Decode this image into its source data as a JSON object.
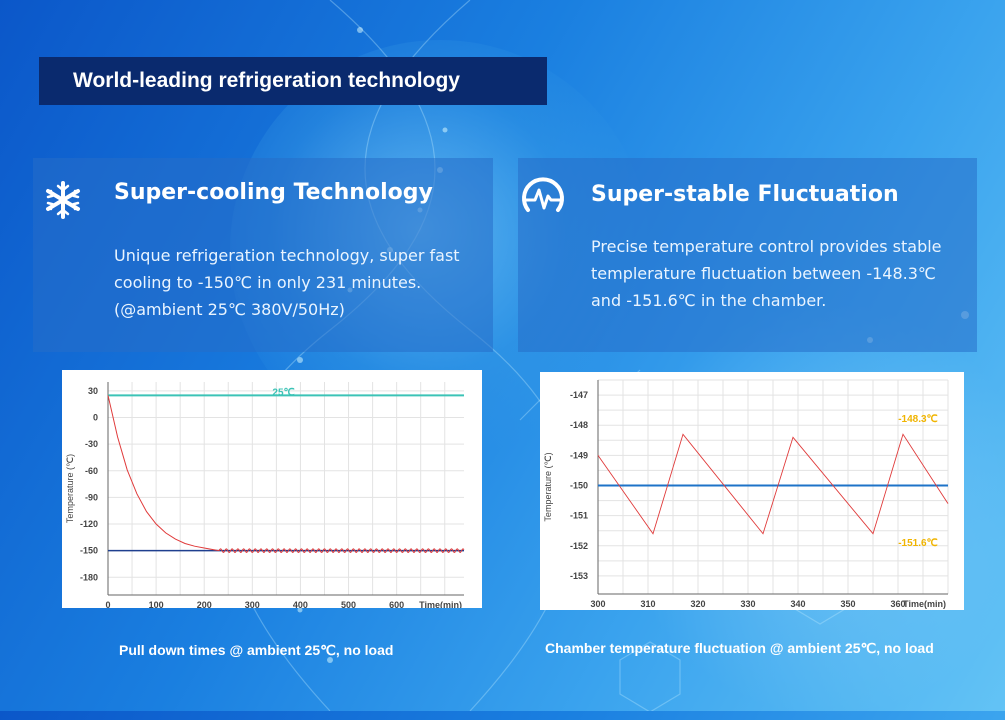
{
  "banner": {
    "title": "World-leading refrigeration technology"
  },
  "panels": [
    {
      "icon": "snowflake-icon",
      "title": "Super-cooling Technology",
      "lines": [
        "Unique refrigeration technology, super fast",
        "cooling to -150℃ in only 231 minutes.",
        "(@ambient 25℃ 380V/50Hz)"
      ]
    },
    {
      "icon": "pulse-gauge-icon",
      "title": "Super-stable Fluctuation",
      "lines": [
        "Precise temperature control provides stable",
        "templerature fluctuation between -148.3℃",
        "and -151.6℃ in the chamber."
      ]
    }
  ],
  "captions": {
    "left": "Pull down times @ ambient 25℃, no load",
    "right": "Chamber temperature fluctuation @ ambient  25℃, no load"
  },
  "colors": {
    "ambient_line": "#3cc3b6",
    "curve": "#e03a3a",
    "target_line": "#1f3f8f",
    "setpoint_line": "#1e73c8",
    "annotation": "#f0b400"
  },
  "chart_data": [
    {
      "type": "line",
      "ylabel": "Temperature (℃)",
      "xlabel": "Time(min)",
      "xlim": [
        0,
        740
      ],
      "ylim": [
        -200,
        40
      ],
      "xticks": [
        0,
        100,
        200,
        300,
        400,
        500,
        600
      ],
      "yticks": [
        30,
        0,
        -30,
        -60,
        -90,
        -120,
        -150,
        -180
      ],
      "annotations": [
        {
          "text": "25℃",
          "x": 365,
          "y": 25
        }
      ],
      "series": [
        {
          "role": "ambient",
          "x": [
            0,
            740
          ],
          "y": [
            25,
            25
          ]
        },
        {
          "role": "target",
          "x": [
            0,
            740
          ],
          "y": [
            -150,
            -150
          ]
        },
        {
          "role": "temperature",
          "x": [
            0,
            20,
            40,
            60,
            80,
            100,
            120,
            140,
            160,
            180,
            200,
            220,
            231
          ],
          "y": [
            25,
            -22,
            -59,
            -86,
            -106,
            -120,
            -130,
            -137,
            -142,
            -145,
            -147,
            -149,
            -150
          ],
          "oscillation": {
            "from_x": 231,
            "to_x": 740,
            "period_min": 12,
            "amplitude": 2
          }
        }
      ]
    },
    {
      "type": "line",
      "ylabel": "Temperature (℃)",
      "xlabel": "Time(min)",
      "xlim": [
        300,
        370
      ],
      "ylim": [
        -153.6,
        -146.5
      ],
      "xticks": [
        300,
        310,
        320,
        330,
        340,
        350,
        360
      ],
      "yticks": [
        -147,
        -148,
        -149,
        -150,
        -151,
        -152,
        -153
      ],
      "annotations": [
        {
          "text": "-148.3℃",
          "x": 364,
          "y": -147.9
        },
        {
          "text": "-151.6℃",
          "x": 364,
          "y": -152.0
        }
      ],
      "series": [
        {
          "role": "setpoint",
          "x": [
            300,
            370
          ],
          "y": [
            -150,
            -150
          ]
        },
        {
          "role": "temperature",
          "x": [
            300,
            311,
            317,
            333,
            339,
            355,
            361,
            370
          ],
          "y": [
            -149.0,
            -151.6,
            -148.3,
            -151.6,
            -148.4,
            -151.6,
            -148.3,
            -150.6
          ]
        }
      ]
    }
  ]
}
